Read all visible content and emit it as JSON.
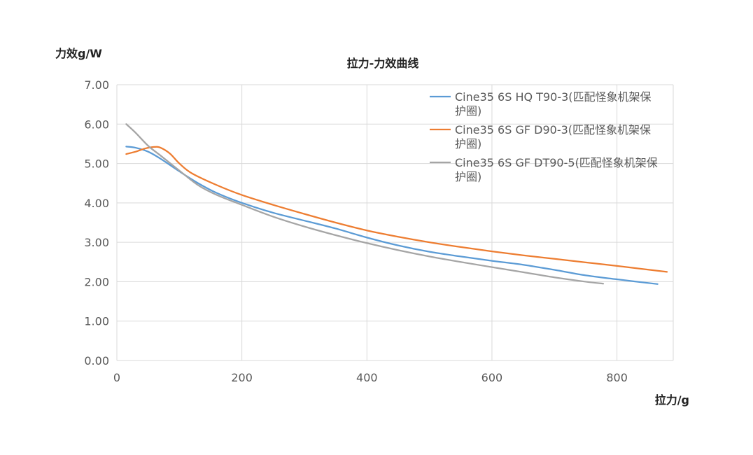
{
  "chart_data": {
    "type": "line",
    "title": "拉力-力效曲线",
    "xlabel": "拉力/g",
    "ylabel": "力效g/W",
    "xlim": [
      0,
      890
    ],
    "ylim": [
      0,
      7
    ],
    "x_ticks": [
      "0",
      "200",
      "400",
      "600",
      "800"
    ],
    "x_tick_values": [
      0,
      200,
      400,
      600,
      800
    ],
    "y_ticks": [
      "0.00",
      "1.00",
      "2.00",
      "3.00",
      "4.00",
      "5.00",
      "6.00",
      "7.00"
    ],
    "y_tick_values": [
      0,
      1,
      2,
      3,
      4,
      5,
      6,
      7
    ],
    "grid": true,
    "legend_position": "top-right",
    "series": [
      {
        "name": "Cine35 6S HQ T90-3(匹配怪象机架保护圈)",
        "legend_lines": [
          "Cine35 6S HQ T90-3(匹配怪象机架保",
          "护圈)"
        ],
        "color": "#5B9BD5",
        "points": [
          [
            15,
            5.43
          ],
          [
            30,
            5.4
          ],
          [
            50,
            5.3
          ],
          [
            70,
            5.12
          ],
          [
            100,
            4.8
          ],
          [
            130,
            4.5
          ],
          [
            160,
            4.25
          ],
          [
            200,
            4.0
          ],
          [
            250,
            3.75
          ],
          [
            300,
            3.55
          ],
          [
            350,
            3.35
          ],
          [
            400,
            3.12
          ],
          [
            450,
            2.92
          ],
          [
            500,
            2.76
          ],
          [
            550,
            2.64
          ],
          [
            600,
            2.53
          ],
          [
            650,
            2.43
          ],
          [
            700,
            2.3
          ],
          [
            750,
            2.16
          ],
          [
            800,
            2.06
          ],
          [
            865,
            1.94
          ]
        ]
      },
      {
        "name": "Cine35 6S GF D90-3(匹配怪象机架保护圈)",
        "legend_lines": [
          "Cine35 6S GF D90-3(匹配怪象机架保",
          "护圈)"
        ],
        "color": "#ED7D31",
        "points": [
          [
            15,
            5.24
          ],
          [
            30,
            5.3
          ],
          [
            45,
            5.38
          ],
          [
            60,
            5.42
          ],
          [
            70,
            5.4
          ],
          [
            85,
            5.25
          ],
          [
            100,
            5.0
          ],
          [
            120,
            4.75
          ],
          [
            160,
            4.45
          ],
          [
            200,
            4.2
          ],
          [
            250,
            3.95
          ],
          [
            300,
            3.72
          ],
          [
            350,
            3.5
          ],
          [
            400,
            3.3
          ],
          [
            450,
            3.14
          ],
          [
            500,
            3.0
          ],
          [
            550,
            2.88
          ],
          [
            600,
            2.77
          ],
          [
            650,
            2.67
          ],
          [
            700,
            2.58
          ],
          [
            750,
            2.49
          ],
          [
            800,
            2.4
          ],
          [
            880,
            2.25
          ]
        ]
      },
      {
        "name": "Cine35 6S GF DT90-5(匹配怪象机架保护圈)",
        "legend_lines": [
          "Cine35 6S GF DT90-5(匹配怪象机架保",
          "护圈)"
        ],
        "color": "#A5A5A5",
        "points": [
          [
            15,
            6.0
          ],
          [
            30,
            5.78
          ],
          [
            50,
            5.45
          ],
          [
            70,
            5.2
          ],
          [
            100,
            4.82
          ],
          [
            130,
            4.45
          ],
          [
            160,
            4.2
          ],
          [
            200,
            3.95
          ],
          [
            250,
            3.65
          ],
          [
            300,
            3.4
          ],
          [
            350,
            3.18
          ],
          [
            400,
            2.98
          ],
          [
            450,
            2.8
          ],
          [
            500,
            2.64
          ],
          [
            550,
            2.5
          ],
          [
            600,
            2.37
          ],
          [
            650,
            2.24
          ],
          [
            700,
            2.11
          ],
          [
            750,
            2.0
          ],
          [
            778,
            1.95
          ]
        ]
      }
    ]
  }
}
